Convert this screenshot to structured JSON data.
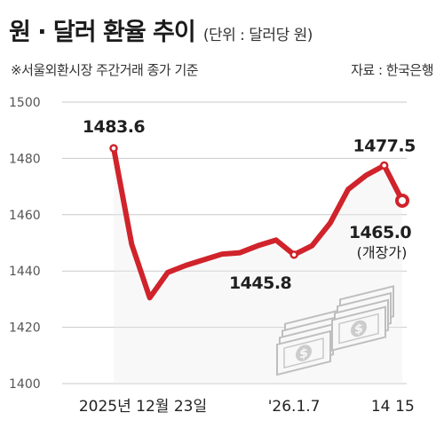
{
  "header": {
    "title": "원 · 달러 환율 추이",
    "unit": "(단위 : 달러당 원)",
    "note": "※서울외환시장 주간거래 종가 기준",
    "source": "자료 : 한국은행"
  },
  "colors": {
    "line": "#d0232b",
    "grid": "#c9c9c9",
    "area": "#ebebeb",
    "marker_fill": "#ffffff"
  },
  "icon": "money-stack-icon",
  "chart_data": {
    "type": "line",
    "title": "원 · 달러 환율 추이",
    "ylabel": "",
    "xlabel": "",
    "ylim": [
      1400,
      1500
    ],
    "yticks": [
      1400,
      1420,
      1440,
      1460,
      1480,
      1500
    ],
    "grid": "horizontal",
    "x_tick_labels": [
      {
        "label": "2025년 12월 23일",
        "index": 0
      },
      {
        "label": "'26.1.7",
        "index": 10
      },
      {
        "label": "14",
        "index": 15
      },
      {
        "label": "15",
        "index": 16
      }
    ],
    "series": [
      {
        "values": [
          1483.6,
          1449.5,
          1430.5,
          1439.5,
          1442.0,
          1444.0,
          1446.0,
          1446.5,
          1449.0,
          1451.0,
          1445.8,
          1449.0,
          1457.0,
          1469.0,
          1474.0,
          1477.5,
          1465.0
        ]
      }
    ],
    "annotations": [
      {
        "index": 0,
        "text": "1483.6"
      },
      {
        "index": 10,
        "text": "1445.8"
      },
      {
        "index": 15,
        "text": "1477.5"
      },
      {
        "index": 16,
        "text": "1465.0",
        "subtext": "(개장가)"
      }
    ]
  }
}
